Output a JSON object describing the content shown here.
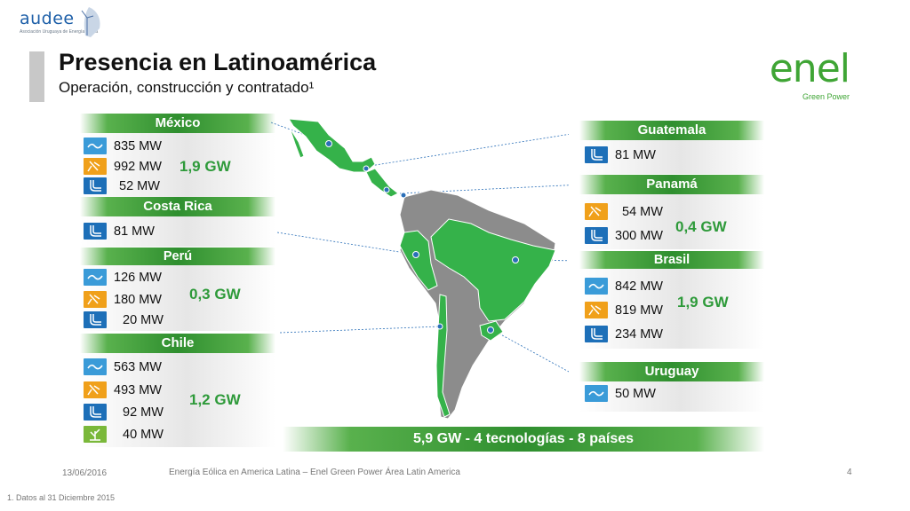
{
  "header": {
    "logo_left": {
      "brand": "audee",
      "tagline": "Asociación Uruguaya de Energía Eólica"
    },
    "title": "Presencia en Latinoamérica",
    "subtitle": "Operación, construcción y contratado¹",
    "logo_right": {
      "word": "enel",
      "subtext": "Green Power"
    }
  },
  "colors": {
    "band_green": "#2f8f2f",
    "total_green": "#2e9a3a",
    "wind": "#3a9bd8",
    "hydro": "#1d6fb8",
    "solar": "#f0a01a",
    "biomass": "#7ab83a",
    "map_green": "#35b24a",
    "map_gray": "#8c8c8c"
  },
  "countries": {
    "mexico": {
      "name": "México",
      "total": "1,9 GW",
      "rows": [
        {
          "icon": "wind-icon",
          "value": "835 MW"
        },
        {
          "icon": "solar-icon",
          "value": "992 MW"
        },
        {
          "icon": "hydro-icon",
          "value": "52 MW"
        }
      ]
    },
    "costa_rica": {
      "name": "Costa Rica",
      "rows": [
        {
          "icon": "hydro-icon",
          "value": "81 MW"
        }
      ]
    },
    "peru": {
      "name": "Perú",
      "total": "0,3 GW",
      "rows": [
        {
          "icon": "wind-icon",
          "value": "126 MW"
        },
        {
          "icon": "solar-icon",
          "value": "180 MW"
        },
        {
          "icon": "hydro-icon",
          "value": "20 MW"
        }
      ]
    },
    "chile": {
      "name": "Chile",
      "total": "1,2 GW",
      "rows": [
        {
          "icon": "wind-icon",
          "value": "563 MW"
        },
        {
          "icon": "solar-icon",
          "value": "493 MW"
        },
        {
          "icon": "hydro-icon",
          "value": "92 MW"
        },
        {
          "icon": "geothermal-icon",
          "value": "40 MW"
        }
      ]
    },
    "guatemala": {
      "name": "Guatemala",
      "rows": [
        {
          "icon": "hydro-icon",
          "value": "81 MW"
        }
      ]
    },
    "panama": {
      "name": "Panamá",
      "total": "0,4 GW",
      "rows": [
        {
          "icon": "solar-icon",
          "value": "54 MW"
        },
        {
          "icon": "hydro-icon",
          "value": "300 MW"
        }
      ]
    },
    "brasil": {
      "name": "Brasil",
      "total": "1,9 GW",
      "rows": [
        {
          "icon": "wind-icon",
          "value": "842 MW"
        },
        {
          "icon": "solar-icon",
          "value": "819 MW"
        },
        {
          "icon": "hydro-icon",
          "value": "234 MW"
        }
      ]
    },
    "uruguay": {
      "name": "Uruguay",
      "rows": [
        {
          "icon": "wind-icon",
          "value": "50 MW"
        }
      ]
    }
  },
  "summary": "5,9 GW - 4 tecnologías - 8 países",
  "footer": {
    "date": "13/06/2016",
    "text": "Energía Eólica en America Latina – Enel Green Power Área Latin America",
    "page": "4",
    "footnote": "1. Datos al 31 Diciembre 2015"
  }
}
